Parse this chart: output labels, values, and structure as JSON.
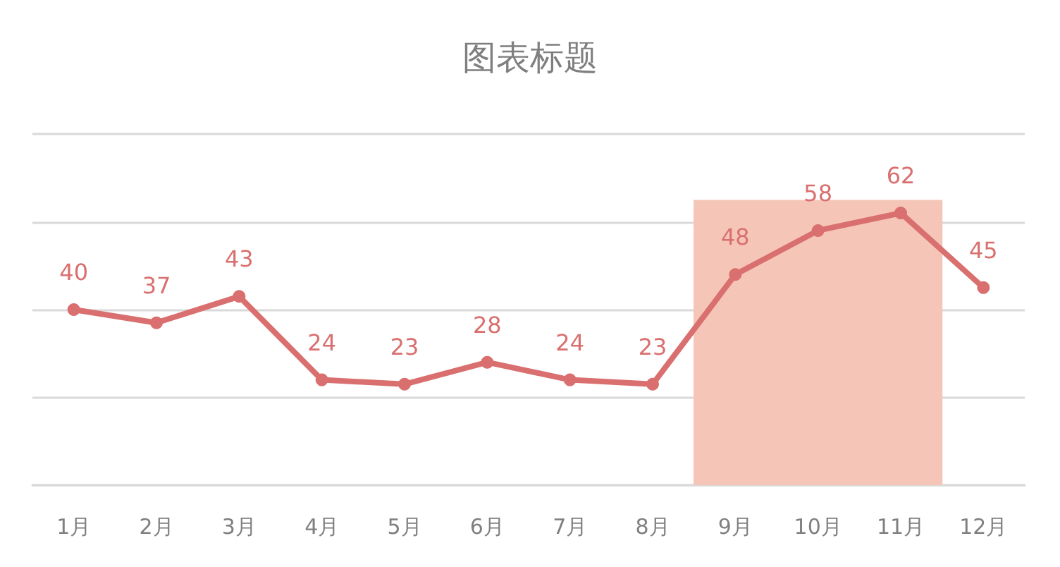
{
  "chart_data": {
    "type": "line",
    "title": "图表标题",
    "categories": [
      "1月",
      "2月",
      "3月",
      "4月",
      "5月",
      "6月",
      "7月",
      "8月",
      "9月",
      "10月",
      "11月",
      "12月"
    ],
    "series": [
      {
        "type": "bar",
        "color": "#f5c6b8",
        "values": [
          null,
          null,
          null,
          null,
          null,
          null,
          null,
          null,
          65,
          65,
          65,
          null
        ]
      },
      {
        "color": "#d9706f",
        "values": [
          40,
          37,
          43,
          24,
          23,
          28,
          24,
          23,
          48,
          58,
          62,
          45
        ],
        "value_labels": [
          "40",
          "37",
          "43",
          "24",
          "23",
          "28",
          "24",
          "23",
          "48",
          "58",
          "62",
          "45"
        ]
      }
    ],
    "ylim": [
      0,
      80
    ],
    "yticks": [
      {
        "value": 0,
        "label": null
      },
      {
        "value": 20,
        "label": null
      },
      {
        "value": 40,
        "label": null
      },
      {
        "value": 60,
        "label": null
      },
      {
        "value": 80,
        "label": null
      }
    ],
    "grid": "y",
    "tick_labels": "x",
    "marker": "circle",
    "line_style": "solid"
  }
}
